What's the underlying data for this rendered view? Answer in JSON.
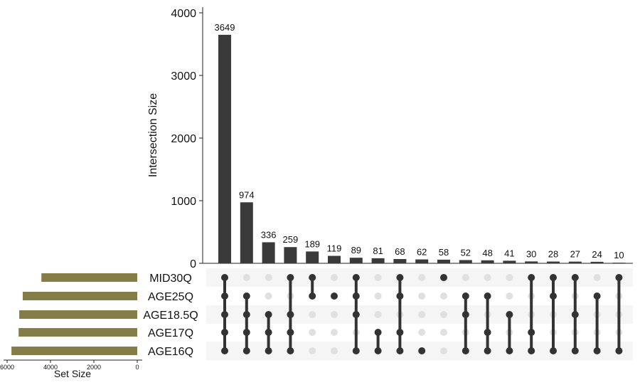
{
  "chart_data": {
    "type": "upset",
    "intersection_axis": {
      "label": "Intersection Size",
      "ylim": [
        0,
        4200
      ],
      "ticks": [
        0,
        1000,
        2000,
        3000,
        4000
      ]
    },
    "set_size_axis": {
      "label": "Set Size",
      "xlim": [
        6000,
        0
      ],
      "ticks": [
        6000,
        4000,
        2000,
        0
      ]
    },
    "sets": [
      {
        "name": "MID30Q",
        "size": 4420
      },
      {
        "name": "AGE25Q",
        "size": 5280
      },
      {
        "name": "AGE18.5Q",
        "size": 5440
      },
      {
        "name": "AGE17Q",
        "size": 5470
      },
      {
        "name": "AGE16Q",
        "size": 5800
      }
    ],
    "intersections": [
      {
        "value": 3649,
        "sets": [
          "MID30Q",
          "AGE25Q",
          "AGE18.5Q",
          "AGE17Q",
          "AGE16Q"
        ]
      },
      {
        "value": 974,
        "sets": [
          "AGE25Q",
          "AGE18.5Q",
          "AGE17Q",
          "AGE16Q"
        ]
      },
      {
        "value": 336,
        "sets": [
          "AGE18.5Q",
          "AGE17Q",
          "AGE16Q"
        ]
      },
      {
        "value": 259,
        "sets": [
          "MID30Q",
          "AGE18.5Q",
          "AGE17Q",
          "AGE16Q"
        ]
      },
      {
        "value": 189,
        "sets": [
          "MID30Q",
          "AGE25Q"
        ]
      },
      {
        "value": 119,
        "sets": [
          "AGE25Q"
        ]
      },
      {
        "value": 89,
        "sets": [
          "MID30Q",
          "AGE25Q",
          "AGE18.5Q",
          "AGE16Q"
        ]
      },
      {
        "value": 81,
        "sets": [
          "AGE17Q",
          "AGE16Q"
        ]
      },
      {
        "value": 68,
        "sets": [
          "MID30Q",
          "AGE25Q",
          "AGE17Q",
          "AGE16Q"
        ]
      },
      {
        "value": 62,
        "sets": [
          "AGE16Q"
        ]
      },
      {
        "value": 58,
        "sets": [
          "MID30Q"
        ]
      },
      {
        "value": 52,
        "sets": [
          "AGE25Q",
          "AGE18.5Q",
          "AGE16Q"
        ]
      },
      {
        "value": 48,
        "sets": [
          "AGE25Q",
          "AGE17Q",
          "AGE16Q"
        ]
      },
      {
        "value": 41,
        "sets": [
          "AGE18.5Q",
          "AGE16Q"
        ]
      },
      {
        "value": 30,
        "sets": [
          "MID30Q",
          "AGE17Q",
          "AGE16Q"
        ]
      },
      {
        "value": 28,
        "sets": [
          "MID30Q",
          "AGE25Q",
          "AGE16Q"
        ]
      },
      {
        "value": 27,
        "sets": [
          "MID30Q",
          "AGE18.5Q",
          "AGE16Q"
        ]
      },
      {
        "value": 24,
        "sets": [
          "AGE25Q",
          "AGE16Q"
        ]
      },
      {
        "value": 10,
        "sets": [
          "MID30Q",
          "AGE16Q"
        ]
      }
    ],
    "colors": {
      "bars": "#3a3a3a",
      "set_bars": "#857d48",
      "dot_active": "#333333",
      "dot_inactive": "#e0e0e0",
      "stripe": "#f5f5f5"
    }
  }
}
